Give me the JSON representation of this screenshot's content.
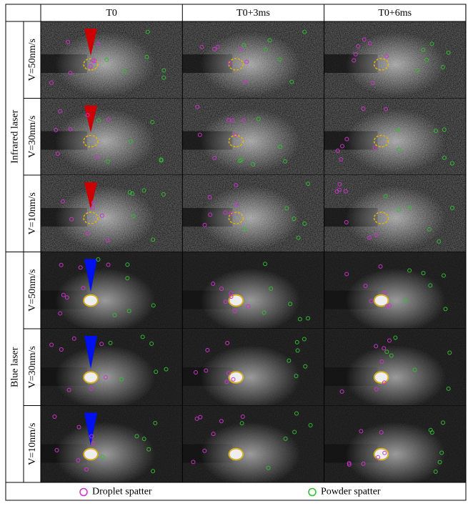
{
  "header": {
    "columns": [
      "T0",
      "T0+3ms",
      "T0+6ms"
    ]
  },
  "groups": [
    {
      "label": "Infrared laser",
      "color": "#cc0000",
      "rows": [
        "V=50nm/s",
        "V=30nm/s",
        "V=10nm/s"
      ]
    },
    {
      "label": "Blue laser",
      "color": "#0010ee",
      "rows": [
        "V=50nm/s",
        "V=30nm/s",
        "V=10nm/s"
      ]
    }
  ],
  "legend": [
    {
      "label": "Droplet spatter",
      "color": "#cc33cc"
    },
    {
      "label": "Powder spatter",
      "color": "#33bb33"
    }
  ]
}
